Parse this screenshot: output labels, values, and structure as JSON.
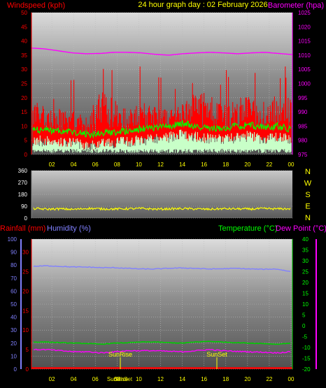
{
  "header": {
    "left_title": "Windspeed (kph)",
    "center_title": "24 hour graph day : 02 February 2026",
    "right_title": "Barometer (hpa)"
  },
  "panel3_labels": {
    "rainfall": "Rainfall (mm)",
    "humidity": "Humidity (%)",
    "temperature": "Temperature (°C)",
    "dewpoint": "Dew Point (°C)"
  },
  "colors": {
    "wind": "#ff0000",
    "gust_avg": "#00ff00",
    "wind_low": "#c8ffc8",
    "barometer": "#ff00ff",
    "direction": "#ffff00",
    "humidity": "#8080ff",
    "temperature": "#00cc00",
    "dewpoint": "#ff00ff",
    "rain": "#ff0000",
    "axis_label_left": "#ff0000",
    "axis_label_right": "#ff00ff",
    "center_title": "#ffff00"
  },
  "chart_data": [
    {
      "type": "line",
      "name": "wind-barometer",
      "x_ticks": [
        "02",
        "04",
        "06",
        "08",
        "10",
        "12",
        "14",
        "16",
        "18",
        "20",
        "22",
        "00"
      ],
      "ylim": [
        0,
        50
      ],
      "y_ticks": [
        "0",
        "5",
        "10",
        "15",
        "20",
        "25",
        "30",
        "35",
        "40",
        "45",
        "50"
      ],
      "y2lim": [
        975,
        1025
      ],
      "y2_ticks": [
        "975",
        "980",
        "985",
        "990",
        "995",
        "1000",
        "1005",
        "1010",
        "1015",
        "1020",
        "1025"
      ],
      "series": [
        {
          "key": "barometer",
          "axis": "y2",
          "values": [
            1012.5,
            1012.2,
            1011.5,
            1010.8,
            1010.5,
            1010.6,
            1011,
            1011,
            1010.8,
            1010.3,
            1010,
            1010.5,
            1010.8,
            1011,
            1010.8,
            1010.5,
            1010.8,
            1011,
            1010.6,
            1010.2
          ]
        },
        {
          "key": "wind_avg",
          "axis": "y",
          "values": [
            9,
            8.5,
            8,
            8,
            7,
            7.5,
            8,
            8.5,
            9,
            9.5,
            10,
            11,
            10,
            9.5,
            9,
            10,
            10.5,
            9.5,
            10,
            9
          ]
        },
        {
          "key": "wind_peak",
          "axis": "y",
          "values": [
            16,
            15,
            14,
            13,
            12,
            18,
            17,
            14,
            16,
            15,
            14,
            16,
            19,
            18,
            15,
            17,
            18,
            16,
            18,
            17
          ]
        }
      ]
    },
    {
      "type": "line",
      "name": "wind-direction",
      "y_ticks": [
        "360",
        "270",
        "180",
        "90",
        "0"
      ],
      "ylim": [
        0,
        360
      ],
      "compass": [
        "N",
        "W",
        "S",
        "E",
        "N"
      ],
      "series": [
        {
          "key": "direction",
          "values": [
            72,
            68,
            70,
            66,
            74,
            70,
            69,
            71,
            73,
            68,
            70,
            72,
            70,
            67,
            71,
            70,
            69,
            72,
            70,
            71
          ]
        }
      ]
    },
    {
      "type": "line",
      "name": "rain-humidity-temperature",
      "x_ticks": [
        "02",
        "04",
        "06",
        "08",
        "10",
        "12",
        "14",
        "16",
        "18",
        "20",
        "22",
        "00"
      ],
      "humidity_ticks": [
        "0",
        "10",
        "20",
        "30",
        "40",
        "50",
        "60",
        "70",
        "80",
        "90",
        "100"
      ],
      "rain_ticks": [
        "0",
        "5",
        "10",
        "15",
        "20",
        "25",
        "30"
      ],
      "temp_ticks": [
        "40",
        "35",
        "30",
        "25",
        "20",
        "15",
        "10",
        "5",
        "0",
        "-5",
        "-10",
        "-15",
        "-20"
      ],
      "temp_lim": [
        -20,
        40
      ],
      "humidity_lim": [
        0,
        100
      ],
      "series": [
        {
          "key": "humidity",
          "values": [
            79,
            79.5,
            79,
            78.5,
            78.5,
            78,
            78,
            77.5,
            77,
            77,
            77.5,
            77.8,
            77.5,
            77,
            77.2,
            77.5,
            77,
            76.8,
            77,
            75
          ]
        },
        {
          "key": "temperature",
          "values": [
            -7.5,
            -7.5,
            -7.8,
            -8,
            -8.2,
            -8.5,
            -8,
            -7.8,
            -7.5,
            -7.5,
            -7.8,
            -8,
            -7.5,
            -7.2,
            -7.5,
            -7.8,
            -8,
            -8.2,
            -8.5,
            -8
          ]
        },
        {
          "key": "dewpoint",
          "values": [
            -11,
            -11,
            -11.5,
            -12,
            -12,
            -12.5,
            -12,
            -11.5,
            -11.5,
            -11.5,
            -11.8,
            -12,
            -11.5,
            -11,
            -11.5,
            -11.8,
            -12,
            -12.2,
            -12.5,
            -12
          ]
        },
        {
          "key": "rain",
          "values": [
            0,
            0,
            0,
            0,
            0,
            0,
            0,
            0,
            0,
            0,
            0,
            0,
            0,
            0,
            0,
            0,
            0,
            0,
            0,
            0
          ]
        }
      ],
      "annotations": {
        "sunrise": "SunRise",
        "sunset": "SunSet",
        "bottom1": "SunRise",
        "bottom2": "SunSet"
      }
    }
  ]
}
